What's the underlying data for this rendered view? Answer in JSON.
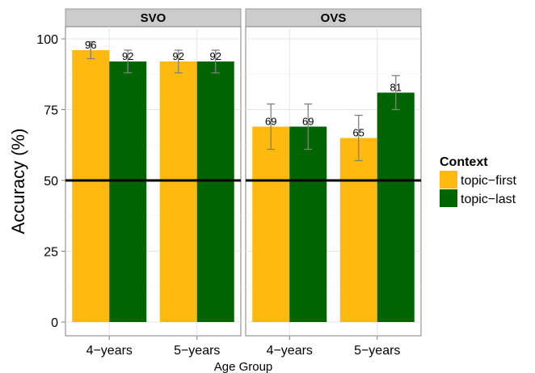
{
  "chart_data": {
    "type": "bar",
    "ylabel": "Accuracy (%)",
    "xlabel": "Age Group",
    "ylim": [
      0,
      100
    ],
    "yticks": [
      0,
      25,
      50,
      75,
      100
    ],
    "reference_line": 50,
    "grid": true,
    "legend_position": "right",
    "legend_title": "Context",
    "categories": [
      "4−years",
      "5−years"
    ],
    "series": [
      {
        "name": "topic−first",
        "color": "#FFB90F"
      },
      {
        "name": "topic−last",
        "color": "#006400"
      }
    ],
    "panels": [
      {
        "title": "SVO",
        "values": {
          "topic−first": [
            96,
            92
          ],
          "topic−last": [
            92,
            92
          ]
        },
        "errors": {
          "topic−first": [
            [
              93,
              99
            ],
            [
              88,
              96
            ]
          ],
          "topic−last": [
            [
              88,
              96
            ],
            [
              88,
              96
            ]
          ]
        }
      },
      {
        "title": "OVS",
        "values": {
          "topic−first": [
            69,
            65
          ],
          "topic−last": [
            69,
            81
          ]
        },
        "errors": {
          "topic−first": [
            [
              61,
              77
            ],
            [
              57,
              73
            ]
          ],
          "topic−last": [
            [
              61,
              77
            ],
            [
              75,
              87
            ]
          ]
        }
      }
    ]
  }
}
